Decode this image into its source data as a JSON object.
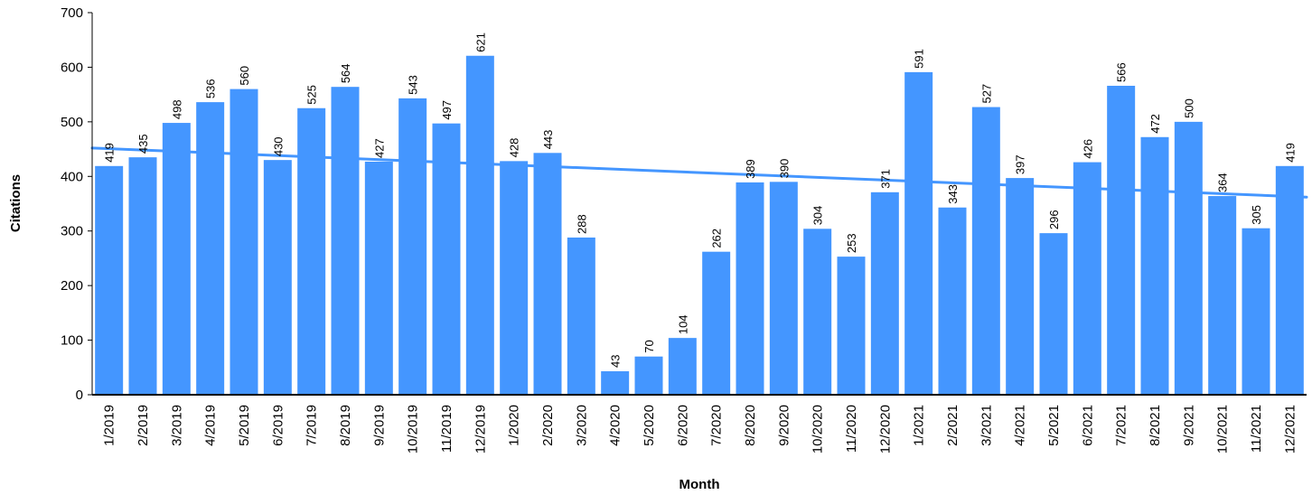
{
  "chart_data": {
    "type": "bar",
    "xlabel": "Month",
    "ylabel": "Citations",
    "ylim": [
      0,
      700
    ],
    "yticks": [
      0,
      100,
      200,
      300,
      400,
      500,
      600,
      700
    ],
    "grid": false,
    "legend": "none",
    "categories": [
      "1/2019",
      "2/2019",
      "3/2019",
      "4/2019",
      "5/2019",
      "6/2019",
      "7/2019",
      "8/2019",
      "9/2019",
      "10/2019",
      "11/2019",
      "12/2019",
      "1/2020",
      "2/2020",
      "3/2020",
      "4/2020",
      "5/2020",
      "6/2020",
      "7/2020",
      "8/2020",
      "9/2020",
      "10/2020",
      "11/2020",
      "12/2020",
      "1/2021",
      "2/2021",
      "3/2021",
      "4/2021",
      "5/2021",
      "6/2021",
      "7/2021",
      "8/2021",
      "9/2021",
      "10/2021",
      "11/2021",
      "12/2021"
    ],
    "values": [
      419,
      435,
      498,
      536,
      560,
      430,
      525,
      564,
      427,
      543,
      497,
      621,
      428,
      443,
      288,
      43,
      70,
      104,
      262,
      389,
      390,
      304,
      253,
      371,
      591,
      343,
      527,
      397,
      296,
      426,
      566,
      472,
      500,
      364,
      305,
      419
    ],
    "trendline": {
      "type": "linear",
      "start": 452,
      "end": 362
    },
    "colors": {
      "bar": "#4496FF",
      "trendline": "#4496FF",
      "axis": "#000000"
    }
  }
}
